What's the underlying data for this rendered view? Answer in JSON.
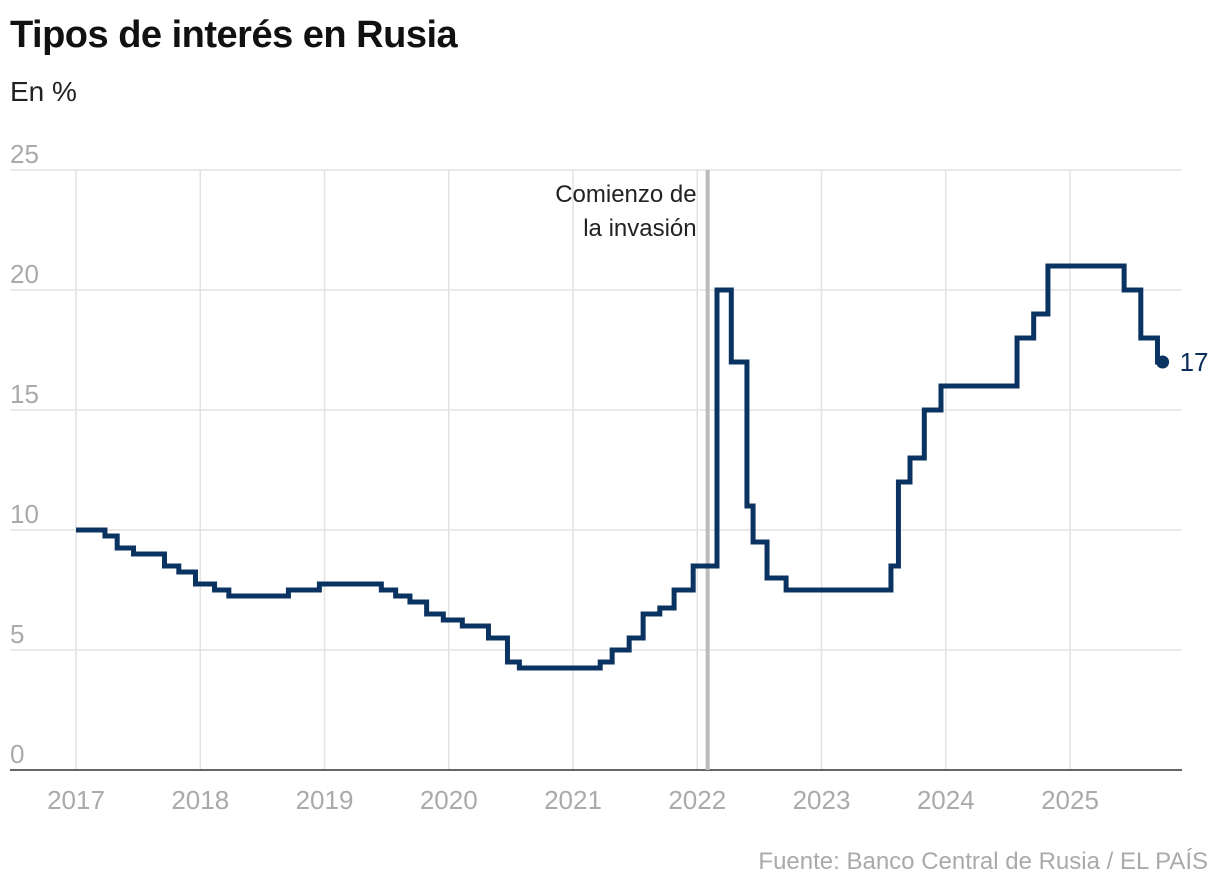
{
  "chart_data": {
    "type": "line",
    "step": true,
    "title": "Tipos de interés en Rusia",
    "subtitle": "En %",
    "source": "Fuente: Banco Central de Rusia / EL PAÍS",
    "ylim": [
      0,
      25
    ],
    "yticks": [
      0,
      5,
      10,
      15,
      20,
      25
    ],
    "xlim": [
      "2016-12-01",
      "2025-12-31"
    ],
    "xticks": [
      "2017",
      "2018",
      "2019",
      "2020",
      "2021",
      "2022",
      "2023",
      "2024",
      "2025"
    ],
    "grid": true,
    "line_color": "#0b3362",
    "annotation": {
      "date": "2022-02-24",
      "text_lines": [
        "Comienzo de",
        "la invasión"
      ],
      "color": "#bbbbbb"
    },
    "end_label": "17",
    "series": [
      {
        "points": [
          [
            "2017-01-01",
            10.0
          ],
          [
            "2017-03-27",
            9.75
          ],
          [
            "2017-05-02",
            9.25
          ],
          [
            "2017-06-19",
            9.0
          ],
          [
            "2017-09-18",
            8.5
          ],
          [
            "2017-10-30",
            8.25
          ],
          [
            "2017-12-18",
            7.75
          ],
          [
            "2018-02-12",
            7.5
          ],
          [
            "2018-03-26",
            7.25
          ],
          [
            "2018-09-17",
            7.5
          ],
          [
            "2018-12-17",
            7.75
          ],
          [
            "2019-06-17",
            7.5
          ],
          [
            "2019-07-29",
            7.25
          ],
          [
            "2019-09-09",
            7.0
          ],
          [
            "2019-10-28",
            6.5
          ],
          [
            "2019-12-16",
            6.25
          ],
          [
            "2020-02-10",
            6.0
          ],
          [
            "2020-04-27",
            5.5
          ],
          [
            "2020-06-22",
            4.5
          ],
          [
            "2020-07-27",
            4.25
          ],
          [
            "2021-03-22",
            4.5
          ],
          [
            "2021-04-26",
            5.0
          ],
          [
            "2021-06-15",
            5.5
          ],
          [
            "2021-07-26",
            6.5
          ],
          [
            "2021-09-13",
            6.75
          ],
          [
            "2021-10-25",
            7.5
          ],
          [
            "2021-12-20",
            8.5
          ],
          [
            "2022-02-28",
            20.0
          ],
          [
            "2022-04-11",
            17.0
          ],
          [
            "2022-05-27",
            11.0
          ],
          [
            "2022-06-14",
            9.5
          ],
          [
            "2022-07-25",
            8.0
          ],
          [
            "2022-09-19",
            7.5
          ],
          [
            "2023-07-24",
            8.5
          ],
          [
            "2023-08-15",
            12.0
          ],
          [
            "2023-09-18",
            13.0
          ],
          [
            "2023-10-30",
            15.0
          ],
          [
            "2023-12-18",
            16.0
          ],
          [
            "2024-07-29",
            18.0
          ],
          [
            "2024-09-16",
            19.0
          ],
          [
            "2024-10-28",
            21.0
          ],
          [
            "2025-06-09",
            20.0
          ],
          [
            "2025-07-28",
            18.0
          ],
          [
            "2025-09-15",
            17.0
          ],
          [
            "2025-09-30",
            17.0
          ]
        ]
      }
    ]
  }
}
